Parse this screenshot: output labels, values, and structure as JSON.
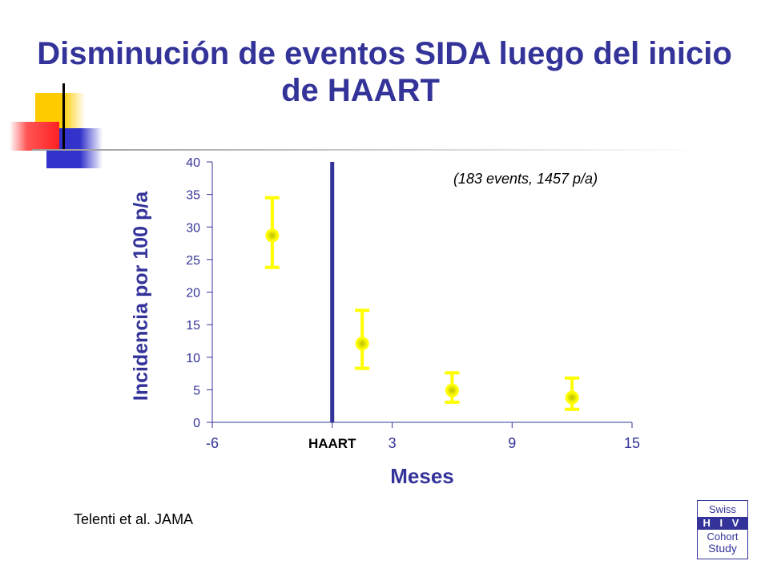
{
  "title_line1": "Disminución de eventos SIDA luego del inicio",
  "title_line2": "de HAART",
  "citation": "Telenti et al.  JAMA",
  "logo": {
    "line1": "Swiss",
    "line2": "H I V",
    "line3": "Cohort",
    "line4": "Study"
  },
  "colors": {
    "title": "#333399",
    "axis": "#333399",
    "haart_line": "#333399",
    "points": "#ffff00",
    "deco_yellow": "#ffcc00",
    "deco_red": "#ff3333",
    "deco_blue": "#3333cc"
  },
  "chart_data": {
    "type": "scatter",
    "xlabel": "Meses",
    "ylabel": "Incidencia por 100 p/a",
    "annotation": "(183 events, 1457 p/a)",
    "xlim": [
      -6,
      15
    ],
    "ylim": [
      0,
      40
    ],
    "x_ticks": [
      {
        "value": -6,
        "label": "-6"
      },
      {
        "value": 0,
        "label": "HAART"
      },
      {
        "value": 3,
        "label": "3"
      },
      {
        "value": 9,
        "label": "9"
      },
      {
        "value": 15,
        "label": "15"
      }
    ],
    "y_ticks": [
      0,
      5,
      10,
      15,
      20,
      25,
      30,
      35,
      40
    ],
    "haart_marker_x": 0,
    "points": [
      {
        "x": -3,
        "y": 28.7,
        "low": 23.8,
        "high": 34.5
      },
      {
        "x": 1.5,
        "y": 12.1,
        "low": 8.3,
        "high": 17.2
      },
      {
        "x": 6,
        "y": 4.9,
        "low": 3.1,
        "high": 7.6
      },
      {
        "x": 12,
        "y": 3.8,
        "low": 2.0,
        "high": 6.8
      }
    ],
    "grid": false
  }
}
